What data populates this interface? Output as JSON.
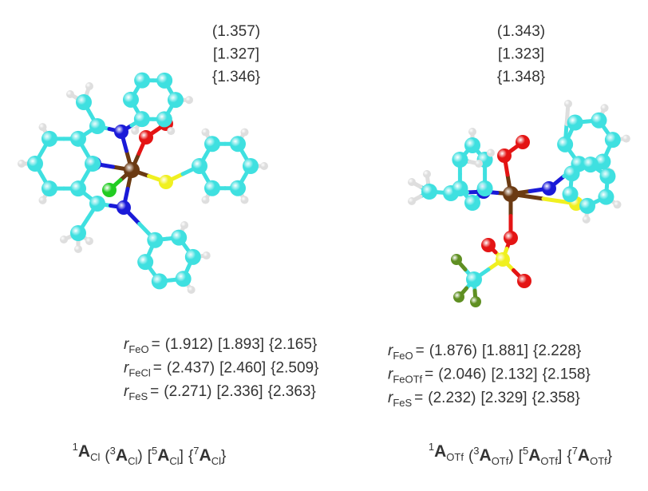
{
  "panels": [
    {
      "bond_labels": [
        "(1.357)",
        "[1.327]",
        "{1.346}"
      ],
      "distances": [
        {
          "symbol": "r",
          "subscript": "FeO",
          "equals": "=",
          "values": [
            "(1.912)",
            "[1.893]",
            "{2.165}"
          ]
        },
        {
          "symbol": "r",
          "subscript": "FeCl",
          "equals": "=",
          "values": [
            "(2.437)",
            "[2.460]",
            "{2.509}"
          ]
        },
        {
          "symbol": "r",
          "subscript": "FeS",
          "equals": "=",
          "values": [
            "(2.271)",
            "[2.336]",
            "{2.363}"
          ]
        }
      ],
      "caption": [
        {
          "spin": "1",
          "letter": "A",
          "subscript": "Cl"
        },
        {
          "open": "(",
          "spin": "3",
          "letter": "A",
          "subscript": "Cl",
          "close": ")"
        },
        {
          "open": "[",
          "spin": "5",
          "letter": "A",
          "subscript": "Cl",
          "close": "]"
        },
        {
          "open": "{",
          "spin": "7",
          "letter": "A",
          "subscript": "Cl",
          "close": "}"
        }
      ]
    },
    {
      "bond_labels": [
        "(1.343)",
        "[1.323]",
        "{1.348}"
      ],
      "distances": [
        {
          "symbol": "r",
          "subscript": "FeO",
          "equals": "=",
          "values": [
            "(1.876)",
            "[1.881]",
            "{2.228}"
          ]
        },
        {
          "symbol": "r",
          "subscript": "FeOTf",
          "equals": "=",
          "values": [
            "(2.046)",
            "[2.132]",
            "{2.158}"
          ]
        },
        {
          "symbol": "r",
          "subscript": "FeS",
          "equals": "=",
          "values": [
            "(2.232)",
            "[2.329]",
            "{2.358}"
          ]
        }
      ],
      "caption": [
        {
          "spin": "1",
          "letter": "A",
          "subscript": "OTf"
        },
        {
          "open": "(",
          "spin": "3",
          "letter": "A",
          "subscript": "OTf",
          "close": ")"
        },
        {
          "open": "[",
          "spin": "5",
          "letter": "A",
          "subscript": "OTf",
          "close": "]"
        },
        {
          "open": "{",
          "spin": "7",
          "letter": "A",
          "subscript": "OTf",
          "close": "}"
        }
      ]
    }
  ]
}
